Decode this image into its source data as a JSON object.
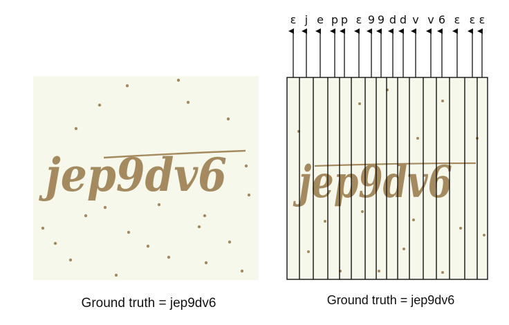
{
  "left_panel": {
    "captcha_text": "jep9dv6",
    "caption": "Ground truth = jep9dv6"
  },
  "right_panel": {
    "captcha_text": "jep9dv6",
    "caption": "Ground truth = jep9dv6",
    "column_labels": [
      "ε",
      "j",
      "e",
      "p",
      "p",
      "ε",
      "9",
      "9",
      "d",
      "d",
      "v",
      "v",
      "6",
      "ε",
      "ε",
      "ε"
    ]
  },
  "colors": {
    "captcha_background": "#f6f8ec",
    "captcha_ink": "#a48a5e",
    "line": "#111111"
  }
}
